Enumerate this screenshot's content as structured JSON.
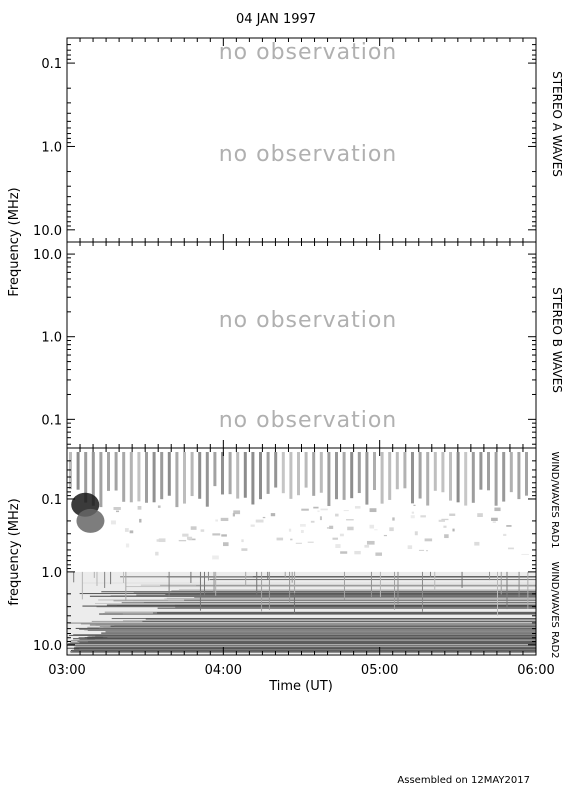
{
  "header": {
    "date": "04 JAN 1997"
  },
  "footer": {
    "assembled": "Assembled on 12MAY2017"
  },
  "chart_data": [
    {
      "type": "heatmap",
      "panel": "stereo-a",
      "right_label": "STEREO A WAVES",
      "ylabel": "Frequency (MHz)",
      "yscale": "log",
      "ylim": [
        0.05,
        14
      ],
      "y_inverted": true,
      "yticks": [
        0.1,
        1.0,
        10.0
      ],
      "ytick_labels": [
        "0.1",
        "1.0",
        "10.0"
      ],
      "annotations": [
        "no observation",
        "no observation"
      ],
      "data": null
    },
    {
      "type": "heatmap",
      "panel": "stereo-b",
      "right_label": "STEREO B WAVES",
      "ylabel": "Frequency (MHz)",
      "yscale": "log",
      "ylim": [
        0.045,
        14
      ],
      "y_inverted": false,
      "yticks": [
        10.0,
        1.0,
        0.1
      ],
      "ytick_labels": [
        "10.0",
        "1.0",
        "0.1"
      ],
      "annotations": [
        "no observation",
        "no observation"
      ],
      "data": null
    },
    {
      "type": "heatmap",
      "panel": "wind-waves",
      "right_label_top": "WIND/WAVES RAD1",
      "right_label_bottom": "WIND/WAVES RAD2",
      "ylabel": "frequency (MHz)",
      "yscale": "log",
      "ylim": [
        0.02,
        13.8
      ],
      "y_inverted": true,
      "yticks": [
        0.1,
        1.0,
        10.0
      ],
      "ytick_labels": [
        "0.1",
        "1.0",
        "10.0"
      ],
      "xlabel": "Time (UT)",
      "xlim": [
        "03:00",
        "06:00"
      ],
      "xticks": [
        "03:00",
        "04:00",
        "05:00",
        "06:00"
      ],
      "bursts": [
        {
          "time": "03:07",
          "freq_mhz": 0.12,
          "intensity": 0.9
        },
        {
          "time": "03:09",
          "freq_mhz": 0.2,
          "intensity": 0.6
        }
      ]
    }
  ]
}
